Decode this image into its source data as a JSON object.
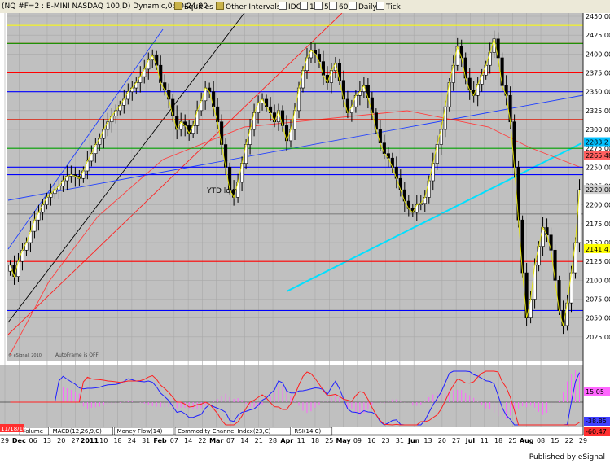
{
  "toolbar": {
    "symbol": "(NQ #F=2 : E-MINI NASDAQ 100,D) Dynamic,0:00-24:00",
    "tabs": [
      {
        "label": "Equities",
        "icon": "equities-icon"
      },
      {
        "label": "Other Intervals",
        "icon": "intervals-icon"
      },
      {
        "label": "IDC"
      },
      {
        "label": "1"
      },
      {
        "label": "5"
      },
      {
        "label": "60"
      },
      {
        "label": "Daily"
      },
      {
        "label": "Tick"
      }
    ]
  },
  "footer": {
    "publisher": "Published by eSignal"
  },
  "chart_data": {
    "type": "candlestick",
    "instrument": "E-MINI NASDAQ 100",
    "ylim": [
      2000,
      2450
    ],
    "y_ticks": [
      2025,
      2050,
      2075,
      2100,
      2125,
      2150,
      2175,
      2200,
      2225,
      2250,
      2275,
      2300,
      2325,
      2350,
      2375,
      2400,
      2425,
      2450
    ],
    "x_ticks": [
      "29",
      "Dec",
      "06",
      "13",
      "20",
      "27",
      "2011",
      "10",
      "18",
      "24",
      "31",
      "Feb",
      "07",
      "14",
      "22",
      "Mar",
      "07",
      "14",
      "21",
      "28",
      "Apr",
      "11",
      "18",
      "25",
      "May",
      "09",
      "16",
      "23",
      "31",
      "Jun",
      "13",
      "20",
      "27",
      "Jul",
      "11",
      "18",
      "25",
      "Aug",
      "08",
      "15",
      "22",
      "29"
    ],
    "start_date_label": "11/18/10",
    "price_labels": [
      {
        "value": 2283.2,
        "text": "2283.2",
        "bg": "#00c0ff"
      },
      {
        "value": 2265.48,
        "text": "2265.48",
        "bg": "#ff6060"
      },
      {
        "value": 2220,
        "text": "2220.00",
        "bg": "#d0d0d0"
      },
      {
        "value": 2141.47,
        "text": "2141.47",
        "bg": "#ffff00"
      }
    ],
    "annotations": [
      {
        "text": "YTD low"
      },
      {
        "text": "AutoFrame is OFF"
      },
      {
        "text": "© eSignal, 2010"
      }
    ],
    "closes": [
      2120,
      2105,
      2125,
      2140,
      2150,
      2165,
      2180,
      2190,
      2200,
      2210,
      2215,
      2220,
      2225,
      2232,
      2238,
      2240,
      2238,
      2235,
      2245,
      2258,
      2268,
      2280,
      2288,
      2300,
      2310,
      2318,
      2325,
      2332,
      2340,
      2350,
      2355,
      2362,
      2370,
      2380,
      2392,
      2398,
      2385,
      2362,
      2352,
      2340,
      2318,
      2300,
      2310,
      2305,
      2295,
      2305,
      2325,
      2338,
      2355,
      2350,
      2330,
      2310,
      2280,
      2250,
      2220,
      2210,
      2230,
      2255,
      2280,
      2300,
      2322,
      2335,
      2340,
      2330,
      2322,
      2310,
      2325,
      2305,
      2285,
      2300,
      2325,
      2355,
      2378,
      2395,
      2405,
      2400,
      2390,
      2372,
      2362,
      2378,
      2388,
      2365,
      2340,
      2322,
      2330,
      2345,
      2350,
      2358,
      2342,
      2322,
      2300,
      2282,
      2268,
      2262,
      2250,
      2235,
      2220,
      2205,
      2195,
      2190,
      2200,
      2202,
      2210,
      2232,
      2255,
      2280,
      2300,
      2330,
      2362,
      2385,
      2410,
      2395,
      2368,
      2352,
      2345,
      2360,
      2372,
      2385,
      2402,
      2420,
      2395,
      2358,
      2345,
      2310,
      2250,
      2180,
      2110,
      2050,
      2075,
      2120,
      2145,
      2170,
      2160,
      2140,
      2100,
      2060,
      2040,
      2070,
      2110,
      2150,
      2220
    ],
    "horizontal_lines": [
      {
        "value": 2438,
        "color": "#ffff00"
      },
      {
        "value": 2414,
        "color": "#ff0000"
      },
      {
        "value": 2414,
        "color": "#00a000"
      },
      {
        "value": 2375,
        "color": "#ff0000"
      },
      {
        "value": 2350,
        "color": "#0000ff"
      },
      {
        "value": 2313,
        "color": "#00a000"
      },
      {
        "value": 2313,
        "color": "#ff0000"
      },
      {
        "value": 2275,
        "color": "#00a000"
      },
      {
        "value": 2250,
        "color": "#0000ff"
      },
      {
        "value": 2240,
        "color": "#0000ff"
      },
      {
        "value": 2188,
        "color": "#808080"
      },
      {
        "value": 2125,
        "color": "#ff0000"
      },
      {
        "value": 2062,
        "color": "#ffff00"
      },
      {
        "value": 2060,
        "color": "#0000ff"
      }
    ],
    "indicator": {
      "name": "MACD(12,26,9,C)",
      "labels": [
        {
          "text": "15.05",
          "bg": "#ff66ff"
        },
        {
          "text": "-38.85",
          "bg": "#4040ff"
        },
        {
          "text": "-60.47",
          "bg": "#ff3030"
        }
      ],
      "tabs": [
        "Volume",
        "MACD(12,26,9,C)",
        "Money Flow(14)",
        "Commodity Channel Index(23,C)",
        "RSI(14,C)"
      ]
    }
  }
}
